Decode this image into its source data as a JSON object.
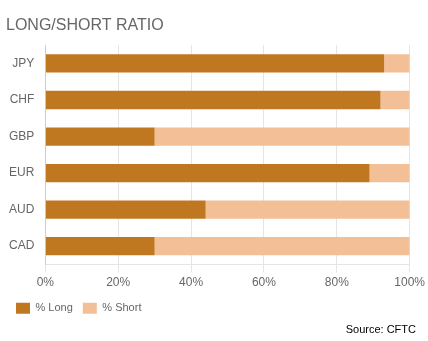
{
  "chart_data": {
    "type": "bar",
    "orientation": "horizontal",
    "stacked": true,
    "title": "LONG/SHORT RATIO",
    "categories": [
      "JPY",
      "CHF",
      "GBP",
      "EUR",
      "AUD",
      "CAD"
    ],
    "series": [
      {
        "name": "% Long",
        "color": "#C07820",
        "values": [
          93,
          92,
          30,
          89,
          44,
          30
        ]
      },
      {
        "name": "% Short",
        "color": "#F2BF96",
        "values": [
          7,
          8,
          70,
          11,
          56,
          70
        ]
      }
    ],
    "xlim": [
      0,
      100
    ],
    "xticks": [
      {
        "value": 0,
        "label": "0%"
      },
      {
        "value": 20,
        "label": "20%"
      },
      {
        "value": 40,
        "label": "40%"
      },
      {
        "value": 60,
        "label": "60%"
      },
      {
        "value": 80,
        "label": "80%"
      },
      {
        "value": 100,
        "label": "100%"
      }
    ],
    "grid": true,
    "legend": "lower left",
    "annotations": [
      "Source: CFTC"
    ]
  }
}
